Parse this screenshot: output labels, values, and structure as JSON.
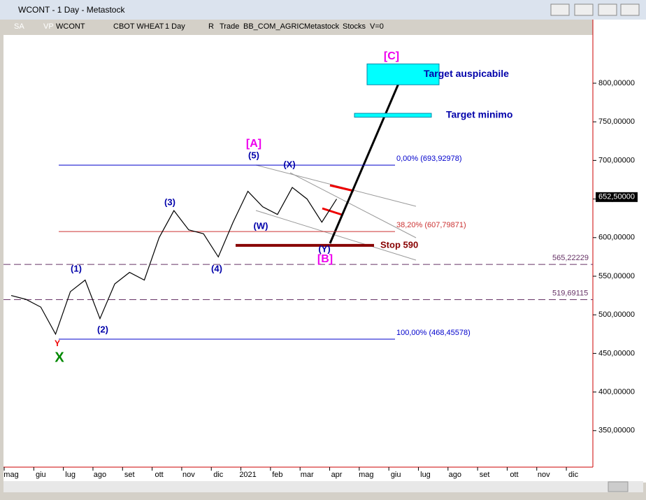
{
  "window": {
    "title": "WCONT - 1 Day - Metastock"
  },
  "toolbar": [
    "SA",
    "VP",
    "WCONT",
    "CBOT WHEAT",
    "1 Day",
    "R",
    "Trade",
    "BB_COM_AGRIC",
    "Metastock",
    "Stocks",
    "V=0"
  ],
  "chart_data": {
    "type": "line",
    "color": "#000000",
    "categories": [
      "mag",
      null,
      "giu",
      null,
      "lug",
      null,
      "ago",
      null,
      "set",
      null,
      "ott",
      null,
      "nov",
      null,
      "dic",
      null,
      "2021",
      null,
      "feb",
      null,
      "mar",
      null,
      "apr",
      null,
      "mag",
      null,
      "giu",
      null,
      "lug",
      null,
      "ago",
      null,
      "set",
      null,
      "ott",
      null,
      "nov",
      null,
      "dic",
      null
    ],
    "values": [
      525,
      520,
      510,
      475,
      530,
      545,
      495,
      540,
      555,
      545,
      600,
      635,
      610,
      605,
      575,
      620,
      660,
      640,
      630,
      665,
      650,
      620,
      650,
      null,
      null,
      null,
      null,
      null,
      null,
      null,
      null,
      null,
      null,
      null,
      null,
      null,
      null,
      null,
      null,
      null
    ],
    "ylim": [
      302.7,
      862.5
    ],
    "yticks": [
      {
        "value": 350,
        "label": "350,00000"
      },
      {
        "value": 400,
        "label": "400,00000"
      },
      {
        "value": 450,
        "label": "450,00000"
      },
      {
        "value": 500,
        "label": "500,00000"
      },
      {
        "value": 550,
        "label": "550,00000"
      },
      {
        "value": 600,
        "label": "600,00000"
      },
      {
        "value": 650,
        "label": "650,00000"
      },
      {
        "value": 700,
        "label": "700,00000"
      },
      {
        "value": 750,
        "label": "750,00000"
      },
      {
        "value": 800,
        "label": "800,00000"
      }
    ],
    "last_price": {
      "value": 652.5,
      "label": "652,50000"
    },
    "levels": [
      {
        "value": 693.92978,
        "label": "0,00% (693,92978)"
      },
      {
        "value": 607.79871,
        "label": "38,20% (607,79871)"
      },
      {
        "value": 565.22229,
        "label": "565,22229"
      },
      {
        "value": 519.69115,
        "label": "519,69115"
      },
      {
        "value": 468.45578,
        "label": "100,00% (468,45578)"
      },
      {
        "value": 590,
        "label": "Stop 590"
      }
    ],
    "zones": [
      {
        "range": [
          798,
          825
        ],
        "label": "Target auspicabile"
      },
      {
        "range": [
          756,
          761
        ],
        "label": "Target minimo"
      }
    ],
    "annotations": [
      "[A]",
      "(5)",
      "(X)",
      "(W)",
      "(Y)",
      "[B]",
      "(4)",
      "(3)",
      "(1)",
      "(2)",
      "Y",
      "X",
      "[C]"
    ]
  }
}
